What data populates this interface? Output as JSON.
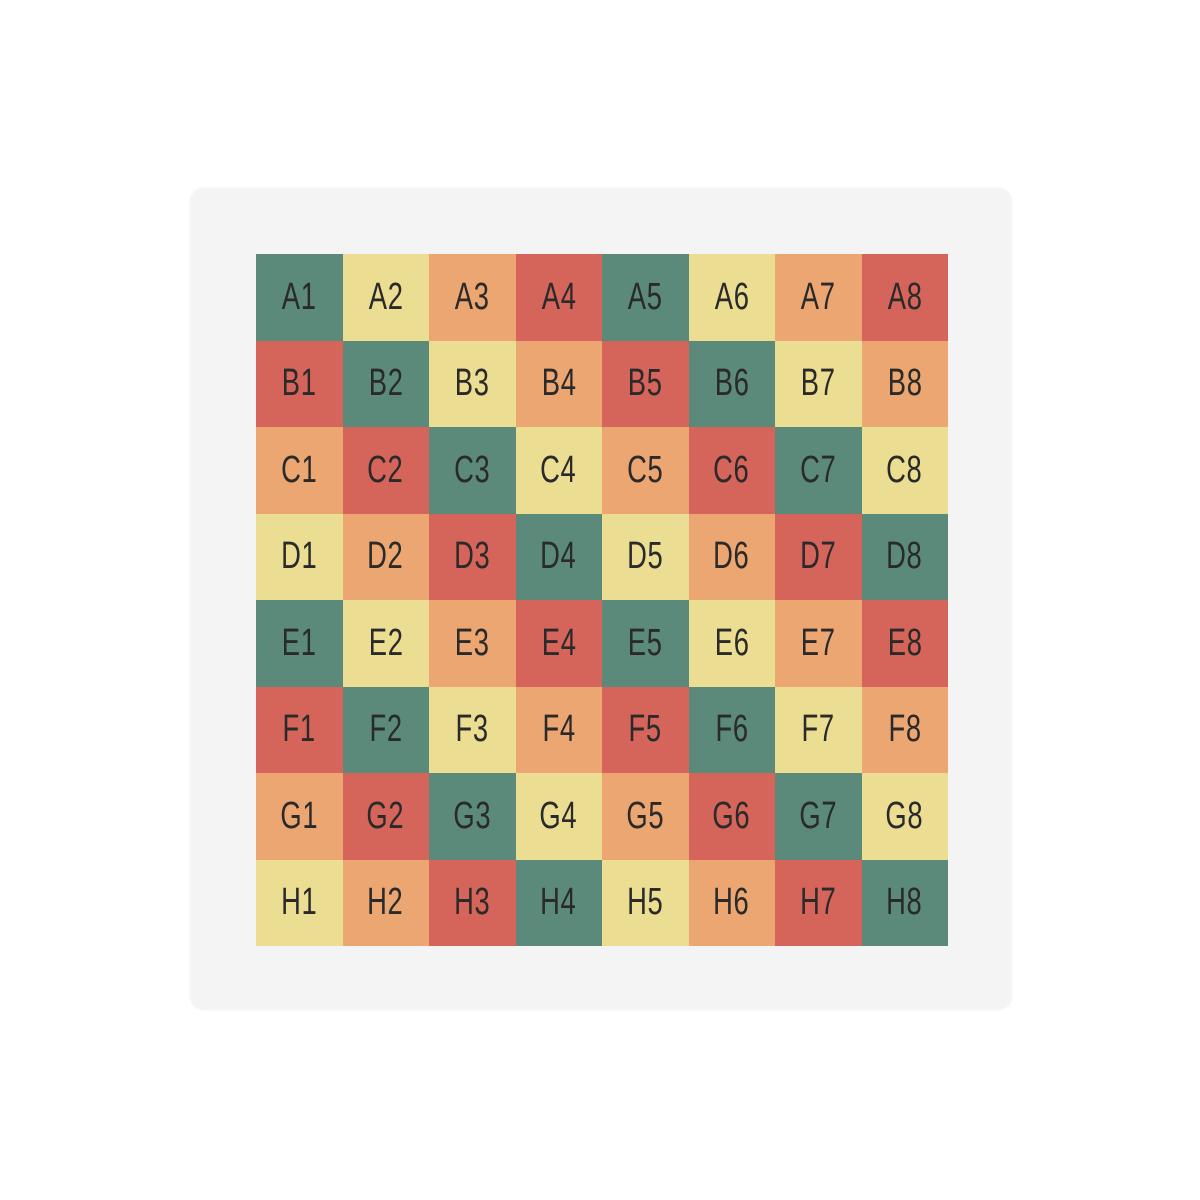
{
  "palette": {
    "teal": "#5b8a7b",
    "yellow": "#ebdd91",
    "orange": "#eba672",
    "red": "#d5655a",
    "text": "#2a2a2a",
    "panel": "#f4f4f4"
  },
  "grid": {
    "rows": [
      {
        "labels": [
          "A1",
          "A2",
          "A3",
          "A4",
          "A5",
          "A6",
          "A7",
          "A8"
        ],
        "colors": [
          "teal",
          "yellow",
          "orange",
          "red",
          "teal",
          "yellow",
          "orange",
          "red"
        ]
      },
      {
        "labels": [
          "B1",
          "B2",
          "B3",
          "B4",
          "B5",
          "B6",
          "B7",
          "B8"
        ],
        "colors": [
          "red",
          "teal",
          "yellow",
          "orange",
          "red",
          "teal",
          "yellow",
          "orange"
        ]
      },
      {
        "labels": [
          "C1",
          "C2",
          "C3",
          "C4",
          "C5",
          "C6",
          "C7",
          "C8"
        ],
        "colors": [
          "orange",
          "red",
          "teal",
          "yellow",
          "orange",
          "red",
          "teal",
          "yellow"
        ]
      },
      {
        "labels": [
          "D1",
          "D2",
          "D3",
          "D4",
          "D5",
          "D6",
          "D7",
          "D8"
        ],
        "colors": [
          "yellow",
          "orange",
          "red",
          "teal",
          "yellow",
          "orange",
          "red",
          "teal"
        ]
      },
      {
        "labels": [
          "E1",
          "E2",
          "E3",
          "E4",
          "E5",
          "E6",
          "E7",
          "E8"
        ],
        "colors": [
          "teal",
          "yellow",
          "orange",
          "red",
          "teal",
          "yellow",
          "orange",
          "red"
        ]
      },
      {
        "labels": [
          "F1",
          "F2",
          "F3",
          "F4",
          "F5",
          "F6",
          "F7",
          "F8"
        ],
        "colors": [
          "red",
          "teal",
          "yellow",
          "orange",
          "red",
          "teal",
          "yellow",
          "orange"
        ]
      },
      {
        "labels": [
          "G1",
          "G2",
          "G3",
          "G4",
          "G5",
          "G6",
          "G7",
          "G8"
        ],
        "colors": [
          "orange",
          "red",
          "teal",
          "yellow",
          "orange",
          "red",
          "teal",
          "yellow"
        ]
      },
      {
        "labels": [
          "H1",
          "H2",
          "H3",
          "H4",
          "H5",
          "H6",
          "H7",
          "H8"
        ],
        "colors": [
          "yellow",
          "orange",
          "red",
          "teal",
          "yellow",
          "orange",
          "red",
          "teal"
        ]
      }
    ]
  }
}
